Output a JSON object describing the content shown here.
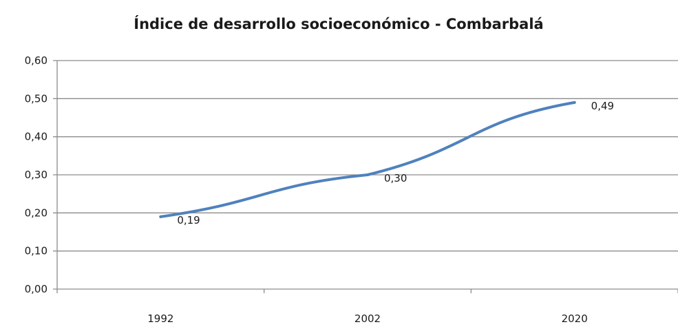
{
  "chart_data": {
    "type": "line",
    "title": "Índice de desarrollo socioeconómico - Combarbalá",
    "xlabel": "",
    "ylabel": "",
    "categories": [
      "1992",
      "2002",
      "2020"
    ],
    "series": [
      {
        "values": [
          0.19,
          0.3,
          0.49
        ],
        "labels": [
          "0,19",
          "0,30",
          "0,49"
        ]
      }
    ],
    "ylim": [
      0,
      0.6
    ],
    "yticks": [
      0.0,
      0.1,
      0.2,
      0.3,
      0.4,
      0.5,
      0.6
    ],
    "ytick_labels": [
      "0,00",
      "0,10",
      "0,20",
      "0,30",
      "0,40",
      "0,50",
      "0,60"
    ],
    "grid": true,
    "legend": "none",
    "line_color": "#4f81bd",
    "grid_color": "#8c8c8c"
  }
}
